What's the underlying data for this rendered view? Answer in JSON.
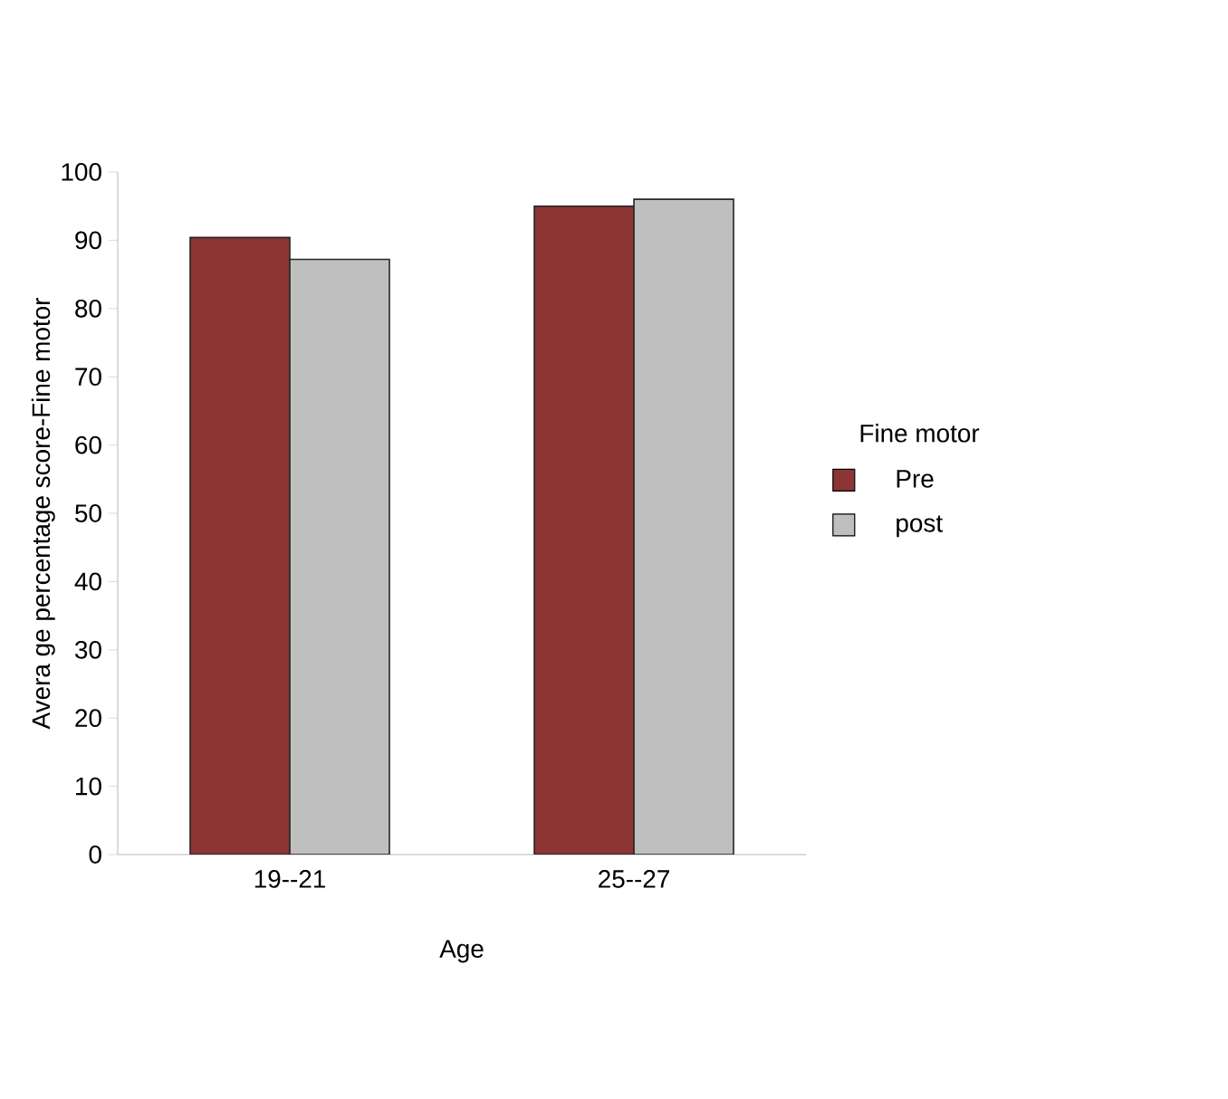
{
  "chart_data": {
    "type": "bar",
    "xlabel": "Age",
    "ylabel": "Avera ge percentage score-Fine motor",
    "legend_title": "Fine motor",
    "categories": [
      "19--21",
      "25--27"
    ],
    "series": [
      {
        "name": "Pre",
        "color": "#8b3535",
        "values": [
          90.4,
          95.0
        ]
      },
      {
        "name": "post",
        "color": "#bfbfbf",
        "values": [
          87.2,
          96.0
        ]
      }
    ],
    "ylim": [
      0,
      100
    ],
    "yticks": [
      0,
      10,
      20,
      30,
      40,
      50,
      60,
      70,
      80,
      90,
      100
    ],
    "legend": "right"
  }
}
